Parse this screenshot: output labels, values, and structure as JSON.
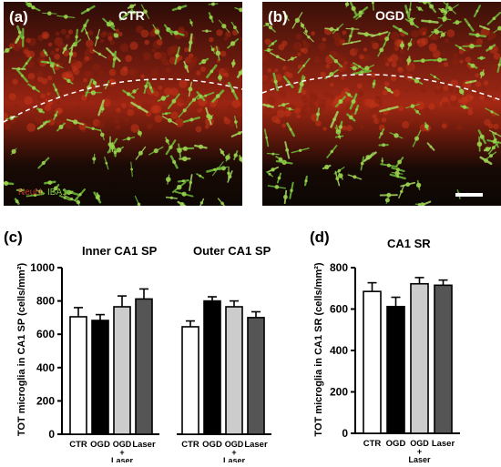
{
  "images": [
    {
      "panel": "(a)",
      "title": "CTR",
      "legend": [
        {
          "text": "NeuN",
          "color": "#c0392b"
        },
        {
          "text": "IBA1",
          "color": "#7fc241"
        }
      ]
    },
    {
      "panel": "(b)",
      "title": "OGD"
    }
  ],
  "chart_data": [
    {
      "panel": "(c)",
      "type": "bar",
      "ylabel": "TOT microglia in CA1 SP (cells/mm²)",
      "ylim": [
        0,
        1000
      ],
      "yticks": [
        0,
        200,
        400,
        600,
        800,
        1000
      ],
      "categories": [
        "CTR",
        "OGD",
        "OGD + Laser",
        "Laser"
      ],
      "bar_colors": [
        "#ffffff",
        "#000000",
        "#cccccc",
        "#555555"
      ],
      "groups": [
        {
          "title": "Inner CA1 SP",
          "values": [
            705,
            683,
            765,
            812
          ],
          "errors": [
            55,
            35,
            65,
            60
          ]
        },
        {
          "title": "Outer CA1 SP",
          "values": [
            645,
            800,
            765,
            700
          ],
          "errors": [
            35,
            25,
            35,
            35
          ]
        }
      ],
      "grid": false
    },
    {
      "panel": "(d)",
      "type": "bar",
      "title": "CA1 SR",
      "ylabel": "TOT microglia in CA1 SR (cells/mm²)",
      "ylim": [
        0,
        800
      ],
      "yticks": [
        0,
        200,
        400,
        600,
        800
      ],
      "categories": [
        "CTR",
        "OGD",
        "OGD + Laser",
        "Laser"
      ],
      "bar_colors": [
        "#ffffff",
        "#000000",
        "#cccccc",
        "#555555"
      ],
      "values": [
        685,
        612,
        722,
        715
      ],
      "errors": [
        42,
        45,
        30,
        25
      ],
      "grid": false
    }
  ]
}
